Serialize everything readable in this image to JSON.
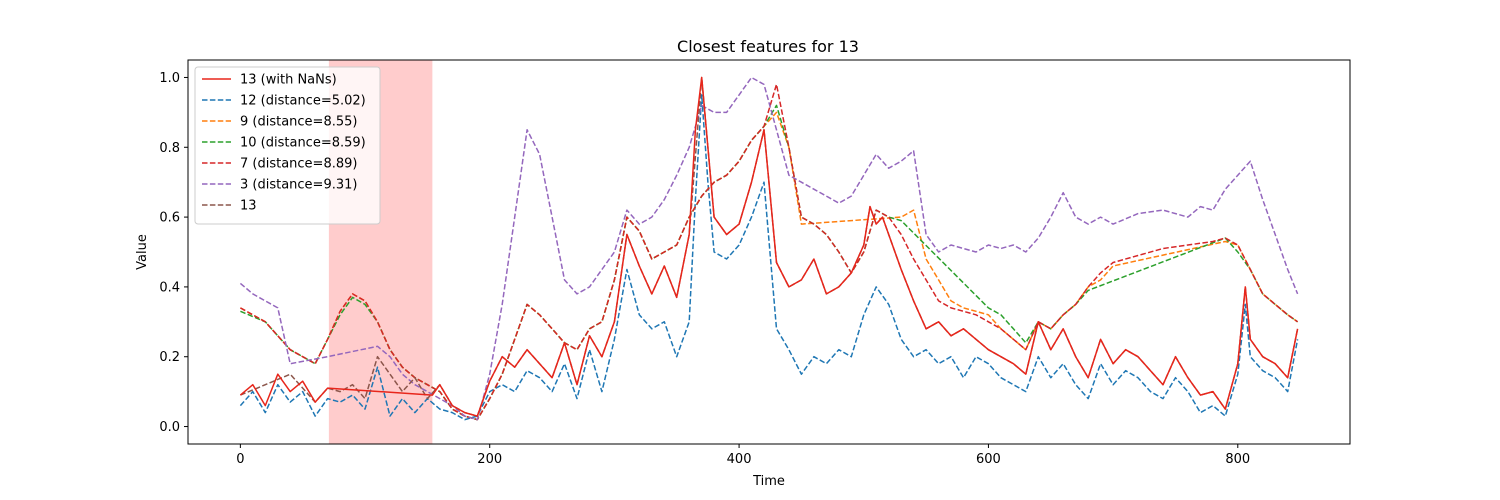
{
  "chart_data": {
    "type": "line",
    "title": "Closest features for 13",
    "xlabel": "Time",
    "ylabel": "Value",
    "xlim": [
      -42,
      890
    ],
    "ylim": [
      -0.05,
      1.05
    ],
    "xticks": [
      0,
      200,
      400,
      600,
      800
    ],
    "yticks": [
      0.0,
      0.2,
      0.4,
      0.6,
      0.8,
      1.0
    ],
    "grid": false,
    "legend_position": "upper left",
    "shaded_region": {
      "x0": 71,
      "x1": 154,
      "color": "#ff9999"
    },
    "series": [
      {
        "name": "13 (with NaNs)",
        "color": "#e8261b",
        "style": "solid",
        "x": [
          0,
          10,
          20,
          30,
          40,
          50,
          60,
          70,
          154,
          160,
          170,
          180,
          190,
          200,
          210,
          220,
          230,
          240,
          250,
          260,
          270,
          280,
          290,
          300,
          310,
          320,
          330,
          340,
          350,
          360,
          365,
          370,
          375,
          380,
          390,
          400,
          410,
          420,
          430,
          440,
          450,
          460,
          470,
          480,
          490,
          500,
          505,
          510,
          515,
          520,
          530,
          540,
          550,
          560,
          570,
          580,
          590,
          600,
          610,
          620,
          630,
          640,
          650,
          660,
          670,
          680,
          690,
          700,
          710,
          720,
          730,
          740,
          750,
          760,
          770,
          780,
          790,
          800,
          806,
          810,
          820,
          830,
          840,
          848
        ],
        "y": [
          0.09,
          0.12,
          0.06,
          0.15,
          0.1,
          0.13,
          0.07,
          0.11,
          0.09,
          0.12,
          0.06,
          0.04,
          0.03,
          0.13,
          0.2,
          0.17,
          0.22,
          0.18,
          0.14,
          0.24,
          0.12,
          0.26,
          0.2,
          0.3,
          0.55,
          0.46,
          0.38,
          0.46,
          0.37,
          0.55,
          0.85,
          1.0,
          0.8,
          0.6,
          0.55,
          0.58,
          0.7,
          0.85,
          0.47,
          0.4,
          0.42,
          0.48,
          0.38,
          0.4,
          0.44,
          0.52,
          0.63,
          0.58,
          0.6,
          0.55,
          0.45,
          0.36,
          0.28,
          0.3,
          0.26,
          0.28,
          0.25,
          0.22,
          0.2,
          0.18,
          0.15,
          0.3,
          0.22,
          0.28,
          0.2,
          0.14,
          0.25,
          0.18,
          0.22,
          0.2,
          0.16,
          0.12,
          0.2,
          0.14,
          0.09,
          0.1,
          0.05,
          0.18,
          0.4,
          0.25,
          0.2,
          0.18,
          0.14,
          0.28
        ]
      },
      {
        "name": "12 (distance=5.02)",
        "color": "#1f77b4",
        "style": "dashed",
        "x": [
          0,
          10,
          20,
          30,
          40,
          50,
          60,
          70,
          80,
          90,
          100,
          110,
          120,
          130,
          140,
          150,
          160,
          170,
          180,
          190,
          200,
          210,
          220,
          230,
          240,
          250,
          260,
          270,
          280,
          290,
          300,
          310,
          320,
          330,
          340,
          350,
          360,
          365,
          370,
          375,
          380,
          390,
          400,
          410,
          420,
          430,
          440,
          450,
          460,
          470,
          480,
          490,
          500,
          510,
          520,
          530,
          540,
          550,
          560,
          570,
          580,
          590,
          600,
          610,
          620,
          630,
          640,
          650,
          660,
          670,
          680,
          690,
          700,
          710,
          720,
          730,
          740,
          750,
          760,
          770,
          780,
          790,
          800,
          806,
          810,
          820,
          830,
          840,
          848
        ],
        "y": [
          0.06,
          0.1,
          0.04,
          0.12,
          0.07,
          0.1,
          0.03,
          0.08,
          0.07,
          0.09,
          0.05,
          0.17,
          0.03,
          0.08,
          0.04,
          0.08,
          0.05,
          0.04,
          0.02,
          0.03,
          0.1,
          0.12,
          0.1,
          0.16,
          0.14,
          0.1,
          0.18,
          0.08,
          0.22,
          0.1,
          0.25,
          0.45,
          0.32,
          0.28,
          0.3,
          0.2,
          0.3,
          0.65,
          0.95,
          0.7,
          0.5,
          0.48,
          0.52,
          0.6,
          0.7,
          0.28,
          0.22,
          0.15,
          0.2,
          0.18,
          0.22,
          0.2,
          0.32,
          0.4,
          0.35,
          0.25,
          0.2,
          0.22,
          0.18,
          0.2,
          0.14,
          0.2,
          0.18,
          0.14,
          0.12,
          0.1,
          0.2,
          0.14,
          0.18,
          0.12,
          0.08,
          0.18,
          0.12,
          0.16,
          0.14,
          0.1,
          0.08,
          0.14,
          0.1,
          0.04,
          0.06,
          0.03,
          0.15,
          0.35,
          0.2,
          0.16,
          0.14,
          0.1,
          0.25
        ]
      },
      {
        "name": "9 (distance=8.55)",
        "color": "#ff7f0e",
        "style": "dashed",
        "x": [
          0,
          20,
          40,
          60,
          70,
          80,
          90,
          100,
          110,
          120,
          130,
          140,
          150,
          160,
          170,
          180,
          190,
          200,
          210,
          220,
          230,
          240,
          250,
          260,
          270,
          280,
          290,
          300,
          310,
          320,
          330,
          340,
          350,
          360,
          370,
          380,
          390,
          400,
          410,
          420,
          430,
          440,
          450,
          530,
          540,
          550,
          560,
          570,
          580,
          590,
          600,
          610,
          620,
          630,
          640,
          650,
          660,
          670,
          680,
          690,
          700,
          790,
          800,
          810,
          820,
          830,
          840,
          848
        ],
        "y": [
          0.34,
          0.3,
          0.22,
          0.18,
          0.25,
          0.33,
          0.38,
          0.36,
          0.3,
          0.22,
          0.17,
          0.14,
          0.12,
          0.1,
          0.05,
          0.03,
          0.02,
          0.08,
          0.15,
          0.25,
          0.35,
          0.32,
          0.28,
          0.24,
          0.22,
          0.28,
          0.3,
          0.42,
          0.6,
          0.56,
          0.48,
          0.5,
          0.52,
          0.6,
          0.66,
          0.7,
          0.72,
          0.76,
          0.82,
          0.86,
          0.9,
          0.8,
          0.58,
          0.6,
          0.62,
          0.48,
          0.42,
          0.36,
          0.34,
          0.33,
          0.32,
          0.28,
          0.25,
          0.22,
          0.3,
          0.28,
          0.32,
          0.35,
          0.4,
          0.42,
          0.46,
          0.53,
          0.52,
          0.45,
          0.38,
          0.35,
          0.32,
          0.3
        ]
      },
      {
        "name": "10 (distance=8.59)",
        "color": "#2ca02c",
        "style": "dashed",
        "x": [
          0,
          20,
          40,
          60,
          70,
          80,
          90,
          100,
          110,
          120,
          130,
          140,
          150,
          160,
          170,
          180,
          190,
          200,
          210,
          220,
          230,
          240,
          250,
          260,
          270,
          280,
          290,
          300,
          310,
          320,
          330,
          340,
          350,
          360,
          370,
          380,
          390,
          400,
          410,
          420,
          430,
          440,
          450,
          460,
          470,
          480,
          490,
          500,
          510,
          520,
          530,
          600,
          610,
          620,
          630,
          640,
          650,
          660,
          670,
          680,
          790,
          800,
          810,
          820,
          830,
          840,
          848
        ],
        "y": [
          0.33,
          0.3,
          0.22,
          0.18,
          0.25,
          0.32,
          0.37,
          0.35,
          0.3,
          0.22,
          0.17,
          0.14,
          0.12,
          0.1,
          0.05,
          0.03,
          0.02,
          0.08,
          0.15,
          0.25,
          0.35,
          0.32,
          0.28,
          0.24,
          0.22,
          0.28,
          0.3,
          0.42,
          0.6,
          0.56,
          0.48,
          0.5,
          0.52,
          0.6,
          0.66,
          0.7,
          0.72,
          0.76,
          0.82,
          0.86,
          0.92,
          0.8,
          0.6,
          0.58,
          0.55,
          0.5,
          0.44,
          0.5,
          0.62,
          0.6,
          0.59,
          0.34,
          0.32,
          0.28,
          0.24,
          0.3,
          0.28,
          0.32,
          0.35,
          0.39,
          0.54,
          0.5,
          0.45,
          0.38,
          0.35,
          0.32,
          0.3
        ]
      },
      {
        "name": "7 (distance=8.89)",
        "color": "#d62728",
        "style": "dashed",
        "x": [
          0,
          20,
          40,
          60,
          70,
          80,
          90,
          100,
          110,
          120,
          130,
          140,
          150,
          160,
          170,
          180,
          190,
          200,
          210,
          220,
          230,
          240,
          250,
          260,
          270,
          280,
          290,
          300,
          310,
          320,
          330,
          340,
          350,
          360,
          370,
          380,
          390,
          400,
          410,
          420,
          430,
          440,
          450,
          460,
          470,
          480,
          490,
          500,
          510,
          520,
          530,
          540,
          550,
          560,
          570,
          580,
          590,
          600,
          610,
          620,
          630,
          640,
          650,
          660,
          670,
          680,
          690,
          700,
          720,
          740,
          760,
          780,
          790,
          800,
          810,
          820,
          830,
          840,
          848
        ],
        "y": [
          0.34,
          0.3,
          0.22,
          0.18,
          0.25,
          0.33,
          0.38,
          0.36,
          0.3,
          0.22,
          0.17,
          0.14,
          0.12,
          0.1,
          0.05,
          0.03,
          0.02,
          0.08,
          0.15,
          0.25,
          0.35,
          0.32,
          0.28,
          0.24,
          0.22,
          0.28,
          0.3,
          0.42,
          0.6,
          0.56,
          0.48,
          0.5,
          0.52,
          0.6,
          0.66,
          0.7,
          0.72,
          0.76,
          0.82,
          0.86,
          0.98,
          0.8,
          0.6,
          0.58,
          0.55,
          0.5,
          0.44,
          0.5,
          0.62,
          0.6,
          0.55,
          0.48,
          0.42,
          0.36,
          0.34,
          0.33,
          0.32,
          0.3,
          0.28,
          0.25,
          0.22,
          0.3,
          0.28,
          0.32,
          0.35,
          0.4,
          0.44,
          0.47,
          0.49,
          0.51,
          0.52,
          0.53,
          0.54,
          0.52,
          0.45,
          0.38,
          0.35,
          0.32,
          0.3
        ]
      },
      {
        "name": "3 (distance=9.31)",
        "color": "#9467bd",
        "style": "dashed",
        "x": [
          0,
          10,
          20,
          30,
          40,
          70,
          110,
          120,
          130,
          140,
          150,
          160,
          170,
          180,
          190,
          200,
          210,
          220,
          230,
          240,
          250,
          260,
          270,
          280,
          290,
          300,
          310,
          320,
          330,
          340,
          350,
          360,
          370,
          380,
          390,
          400,
          410,
          420,
          430,
          440,
          450,
          460,
          470,
          480,
          490,
          500,
          510,
          520,
          530,
          540,
          550,
          560,
          570,
          580,
          590,
          600,
          610,
          620,
          630,
          640,
          650,
          660,
          670,
          680,
          690,
          700,
          720,
          740,
          760,
          770,
          780,
          790,
          800,
          810,
          820,
          830,
          840,
          848
        ],
        "y": [
          0.41,
          0.38,
          0.36,
          0.34,
          0.18,
          0.2,
          0.23,
          0.2,
          0.15,
          0.12,
          0.1,
          0.08,
          0.06,
          0.03,
          0.02,
          0.15,
          0.35,
          0.6,
          0.85,
          0.78,
          0.6,
          0.42,
          0.38,
          0.4,
          0.45,
          0.5,
          0.62,
          0.58,
          0.6,
          0.65,
          0.72,
          0.8,
          0.92,
          0.9,
          0.9,
          0.95,
          1.0,
          0.98,
          0.85,
          0.72,
          0.7,
          0.68,
          0.66,
          0.64,
          0.66,
          0.72,
          0.78,
          0.74,
          0.76,
          0.79,
          0.55,
          0.5,
          0.52,
          0.51,
          0.5,
          0.52,
          0.51,
          0.52,
          0.5,
          0.54,
          0.6,
          0.67,
          0.6,
          0.58,
          0.6,
          0.58,
          0.61,
          0.62,
          0.6,
          0.63,
          0.62,
          0.68,
          0.72,
          0.76,
          0.65,
          0.55,
          0.45,
          0.38
        ]
      },
      {
        "name": "13",
        "color": "#8c564b",
        "style": "dashed",
        "x": [
          0,
          20,
          40,
          60,
          70,
          80,
          90,
          100,
          110,
          120,
          130,
          140,
          150,
          160,
          170,
          180,
          190,
          200,
          210,
          220,
          230,
          240,
          250,
          260,
          270,
          280,
          290,
          300,
          310,
          320,
          330,
          340,
          350,
          360,
          370,
          375,
          380,
          390,
          400,
          410,
          420,
          430,
          440,
          450,
          460,
          470,
          480,
          490,
          500,
          505,
          510,
          515,
          520,
          530,
          540,
          550,
          560,
          570,
          580,
          590,
          600,
          610,
          620,
          630,
          640,
          650,
          660,
          670,
          680,
          690,
          700,
          710,
          720,
          730,
          740,
          750,
          760,
          770,
          780,
          790,
          800,
          806,
          810,
          820,
          830,
          840,
          848
        ],
        "y": [
          0.09,
          0.12,
          0.15,
          0.07,
          0.11,
          0.1,
          0.12,
          0.08,
          0.2,
          0.15,
          0.1,
          0.14,
          0.08,
          0.12,
          0.06,
          0.04,
          0.03,
          0.13,
          0.2,
          0.17,
          0.22,
          0.18,
          0.14,
          0.24,
          0.12,
          0.26,
          0.2,
          0.3,
          0.55,
          0.46,
          0.38,
          0.46,
          0.37,
          0.55,
          1.0,
          0.8,
          0.6,
          0.55,
          0.58,
          0.7,
          0.85,
          0.47,
          0.4,
          0.42,
          0.48,
          0.38,
          0.4,
          0.44,
          0.52,
          0.63,
          0.58,
          0.6,
          0.55,
          0.45,
          0.36,
          0.28,
          0.3,
          0.26,
          0.28,
          0.25,
          0.22,
          0.2,
          0.18,
          0.15,
          0.3,
          0.22,
          0.28,
          0.2,
          0.14,
          0.25,
          0.18,
          0.22,
          0.2,
          0.16,
          0.12,
          0.2,
          0.14,
          0.09,
          0.1,
          0.05,
          0.18,
          0.4,
          0.25,
          0.2,
          0.18,
          0.14,
          0.28
        ]
      }
    ]
  }
}
